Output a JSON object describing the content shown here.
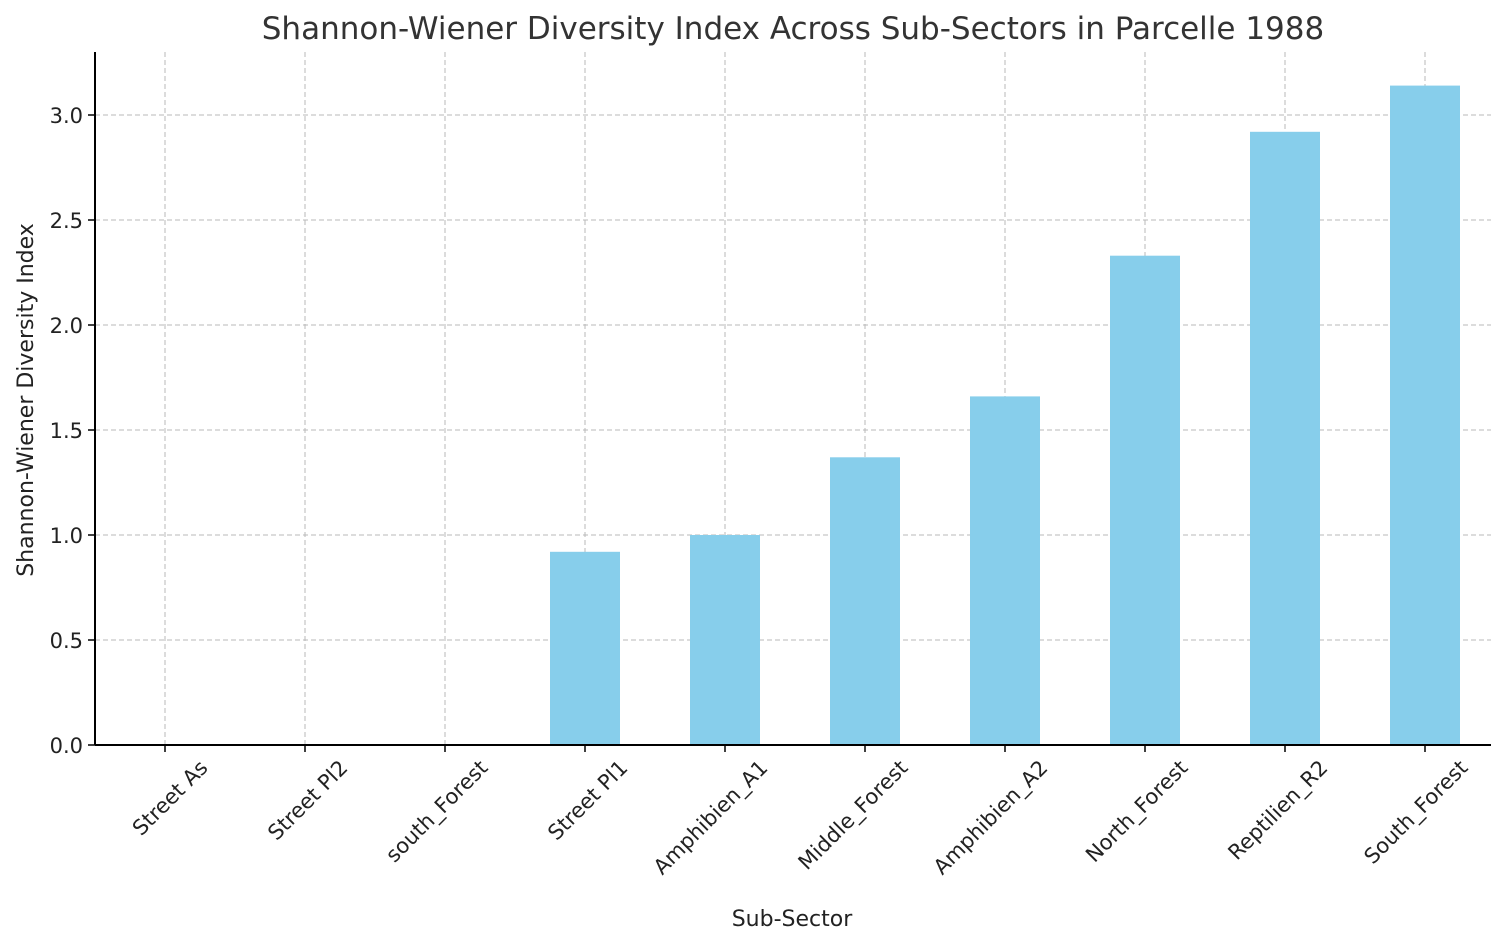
{
  "chart_data": {
    "type": "bar",
    "title": "Shannon-Wiener Diversity Index Across Sub-Sectors in Parcelle 1988",
    "xlabel": "Sub-Sector",
    "ylabel": "Shannon-Wiener Diversity Index",
    "categories": [
      "Street As",
      "Street Pl2",
      "south_Forest",
      "Street Pl1",
      "Amphibien_A1",
      "Middle_Forest",
      "Amphibien_A2",
      "North_Forest",
      "Reptilien_R2",
      "South_Forest"
    ],
    "values": [
      0.0,
      0.0,
      0.0,
      0.92,
      1.0,
      1.37,
      1.66,
      2.33,
      2.92,
      3.14
    ],
    "ylim": [
      0,
      3.3
    ],
    "yticks": [
      0.0,
      0.5,
      1.0,
      1.5,
      2.0,
      2.5,
      3.0
    ],
    "ytick_labels": [
      "0.0",
      "0.5",
      "1.0",
      "1.5",
      "2.0",
      "2.5",
      "3.0"
    ],
    "grid": true,
    "bar_color": "#87ceeb",
    "legend": "none"
  }
}
